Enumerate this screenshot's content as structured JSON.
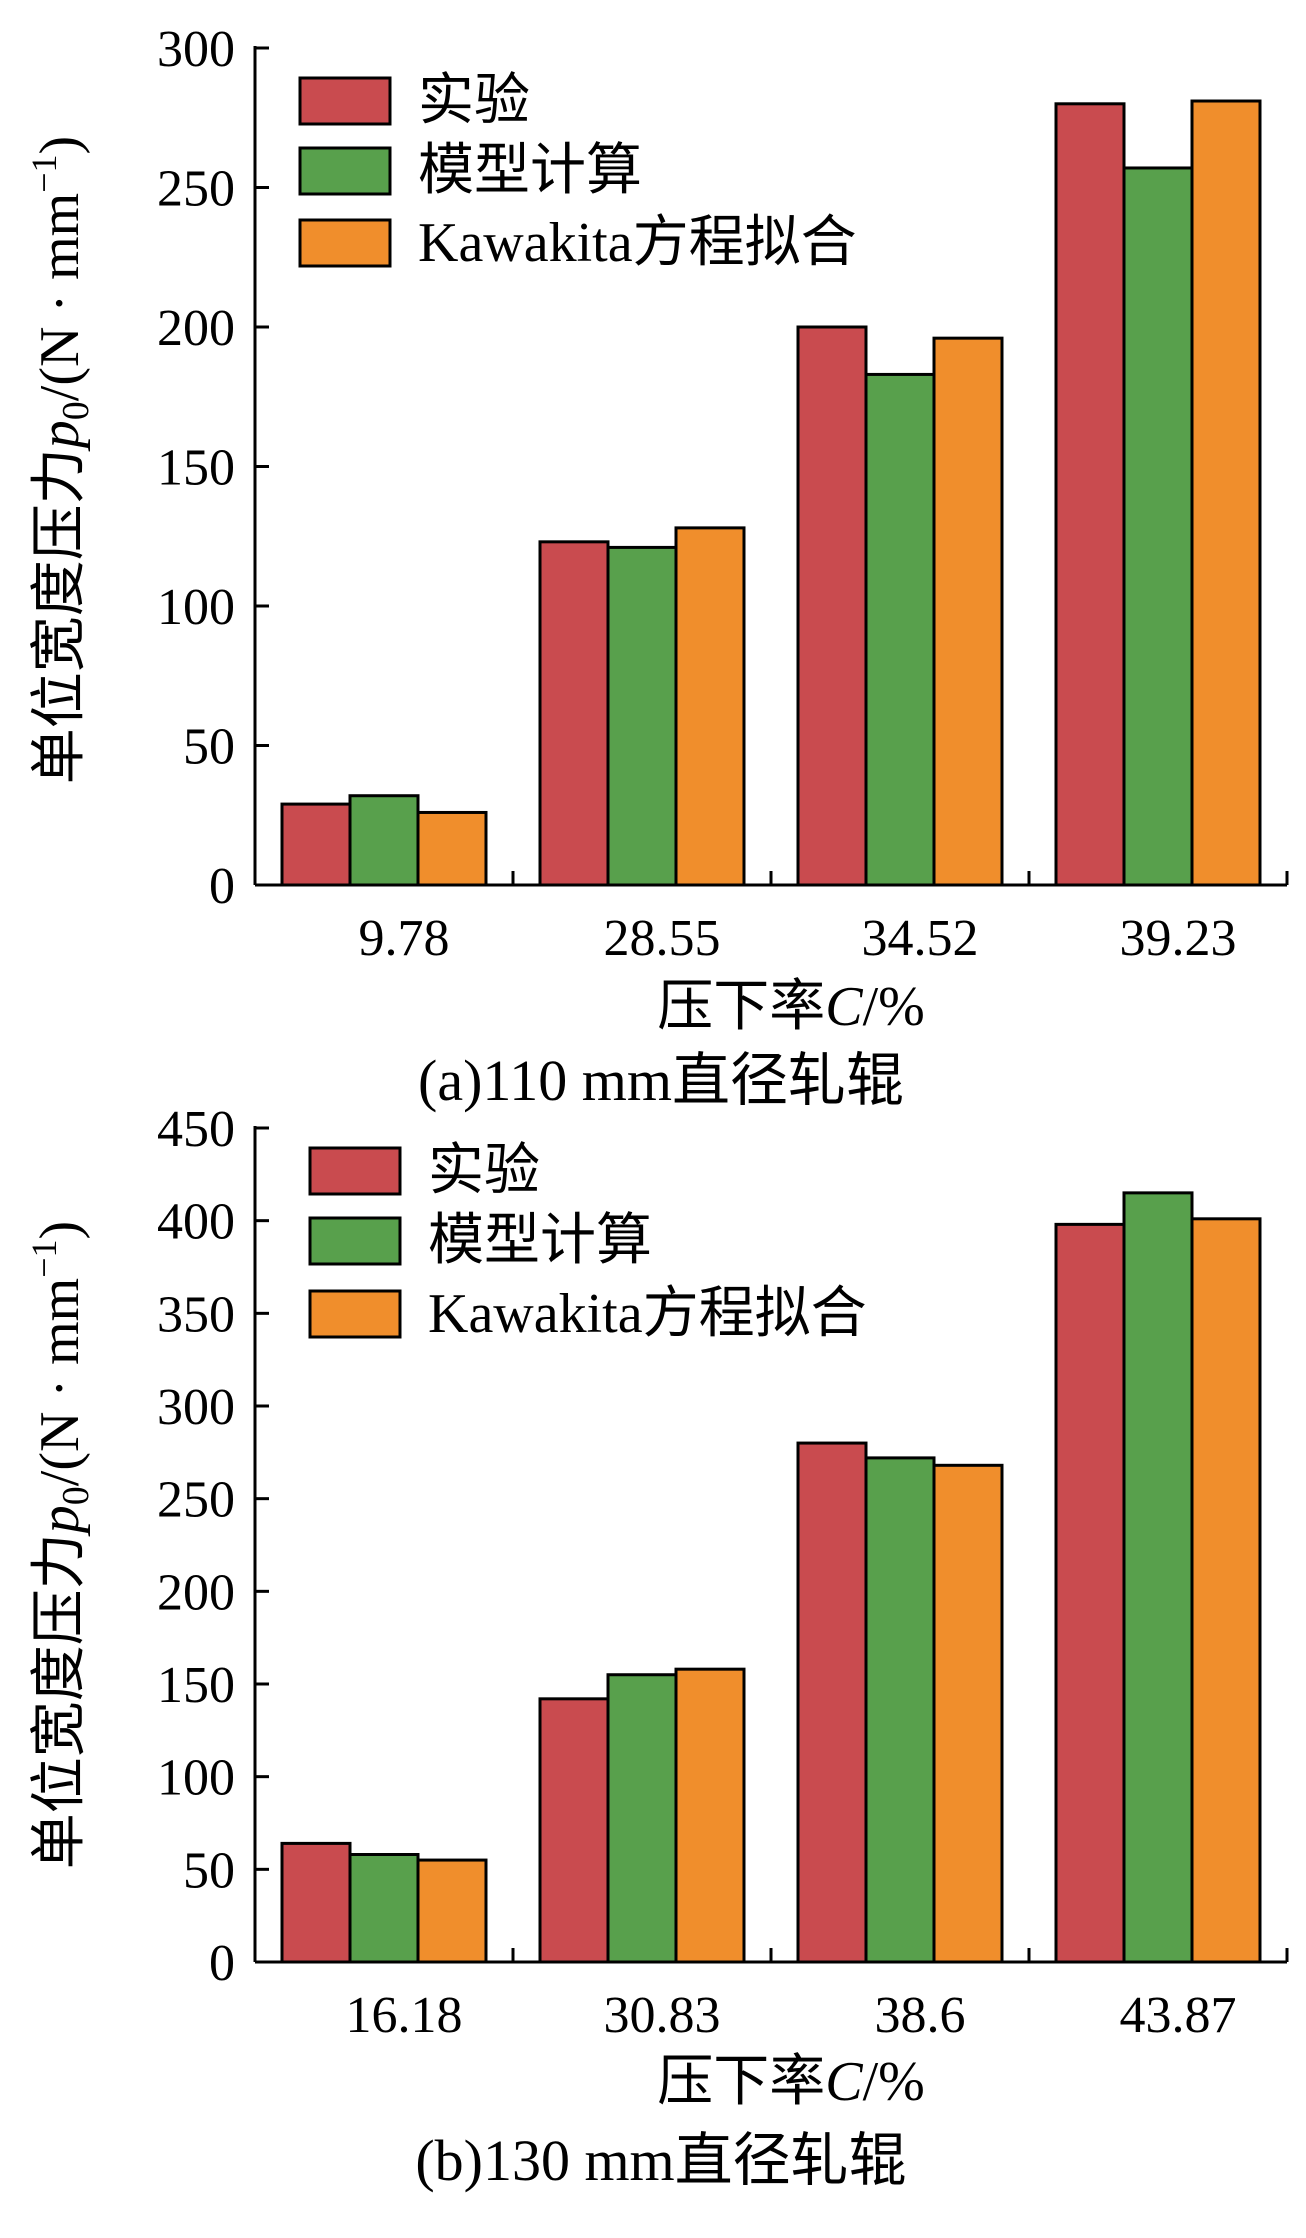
{
  "colors": {
    "series": [
      "#c94b4f",
      "#58a04c",
      "#f08e2c"
    ],
    "stroke": "#000000"
  },
  "chart_data": [
    {
      "type": "bar",
      "caption": "(a)110 mm直径轧辊",
      "xlabel": {
        "prefix": "压下率",
        "var": "C",
        "unit": "/%"
      },
      "ylabel": {
        "prefix": "单位宽度压力",
        "var": "p",
        "sub": "0",
        "unit": "/(N · mm",
        "sup": "−1",
        "close": ")"
      },
      "categories": [
        "9.78",
        "28.55",
        "34.52",
        "39.23"
      ],
      "ylim": [
        0,
        300
      ],
      "yticks": [
        "0",
        "50",
        "100",
        "150",
        "200",
        "250",
        "300"
      ],
      "legend_position": "top-left",
      "series": [
        {
          "name": "实验",
          "values": [
            29,
            123,
            200,
            280
          ]
        },
        {
          "name": "模型计算",
          "values": [
            32,
            121,
            183,
            257
          ]
        },
        {
          "name": "Kawakita方程拟合",
          "values": [
            26,
            128,
            196,
            281
          ]
        }
      ]
    },
    {
      "type": "bar",
      "caption": "(b)130 mm直径轧辊",
      "xlabel": {
        "prefix": "压下率",
        "var": "C",
        "unit": "/%"
      },
      "ylabel": {
        "prefix": "单位宽度压力",
        "var": "p",
        "sub": "0",
        "unit": "/(N · mm",
        "sup": "−1",
        "close": ")"
      },
      "categories": [
        "16.18",
        "30.83",
        "38.6",
        "43.87"
      ],
      "ylim": [
        0,
        450
      ],
      "yticks": [
        "0",
        "50",
        "100",
        "150",
        "200",
        "250",
        "300",
        "350",
        "400",
        "450"
      ],
      "legend_position": "top-left",
      "series": [
        {
          "name": "实验",
          "values": [
            64,
            142,
            280,
            398
          ]
        },
        {
          "name": "模型计算",
          "values": [
            58,
            155,
            272,
            415
          ]
        },
        {
          "name": "Kawakita方程拟合",
          "values": [
            55,
            158,
            268,
            401
          ]
        }
      ]
    }
  ]
}
